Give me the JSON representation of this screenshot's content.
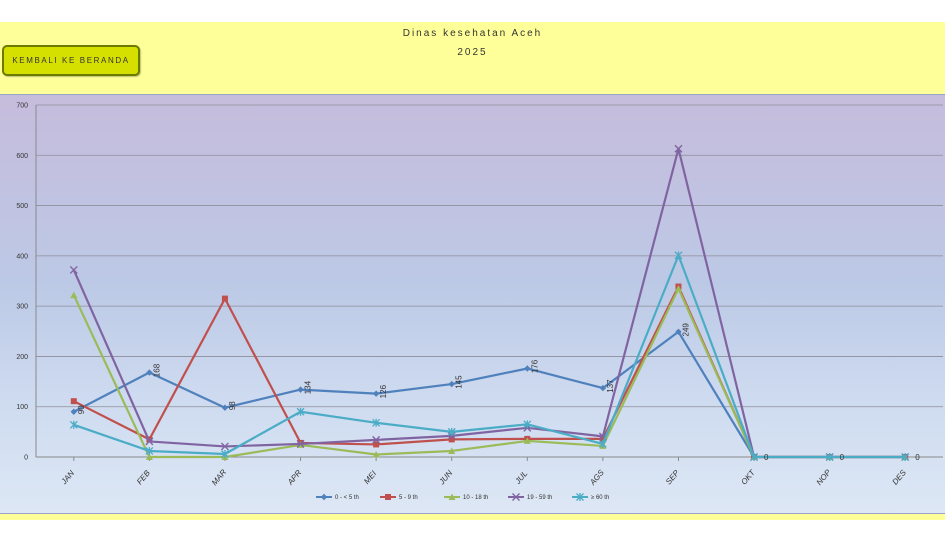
{
  "header": {
    "title": "Dinas kesehatan Aceh",
    "year": "2025",
    "back_button_label": "KEMBALI KE BERANDA"
  },
  "colors": {
    "frame_background": "#ffff99",
    "button_background": "#d6e000"
  },
  "chart_data": {
    "type": "line",
    "categories": [
      "JAN",
      "FEB",
      "MAR",
      "APR",
      "MEI",
      "JUN",
      "JUL",
      "AGS",
      "SEP",
      "OKT",
      "NOP",
      "DES"
    ],
    "ylim": [
      0,
      700
    ],
    "yticks": [
      0,
      100,
      200,
      300,
      400,
      500,
      600,
      700
    ],
    "grid": true,
    "legend_position": "bottom",
    "series": [
      {
        "name": "0 - < 5 th",
        "color": "#4f81bd",
        "marker": "diamond",
        "values": [
          90,
          168,
          98,
          134,
          126,
          145,
          176,
          137,
          249,
          0,
          0,
          0
        ],
        "data_labels": [
          "90",
          "168",
          "98",
          "134",
          "126",
          "145",
          "176",
          "137",
          "249",
          "0",
          "0",
          "0"
        ]
      },
      {
        "name": "5 - 9 th",
        "color": "#c0504d",
        "marker": "square",
        "values": [
          111,
          35,
          315,
          28,
          25,
          35,
          36,
          36,
          339,
          0,
          0,
          0
        ]
      },
      {
        "name": "10 - 18 th",
        "color": "#9bbb59",
        "marker": "triangle",
        "values": [
          322,
          0,
          0,
          24,
          5,
          12,
          32,
          22,
          335,
          0,
          0,
          0
        ]
      },
      {
        "name": "19 - 59 th",
        "color": "#8064a2",
        "marker": "x",
        "values": [
          372,
          31,
          21,
          26,
          34,
          42,
          58,
          41,
          613,
          0,
          0,
          0
        ]
      },
      {
        "name": "≥ 60 th",
        "color": "#4bacc6",
        "marker": "star",
        "values": [
          64,
          12,
          6,
          90,
          68,
          50,
          65,
          26,
          401,
          0,
          0,
          0
        ]
      }
    ]
  }
}
